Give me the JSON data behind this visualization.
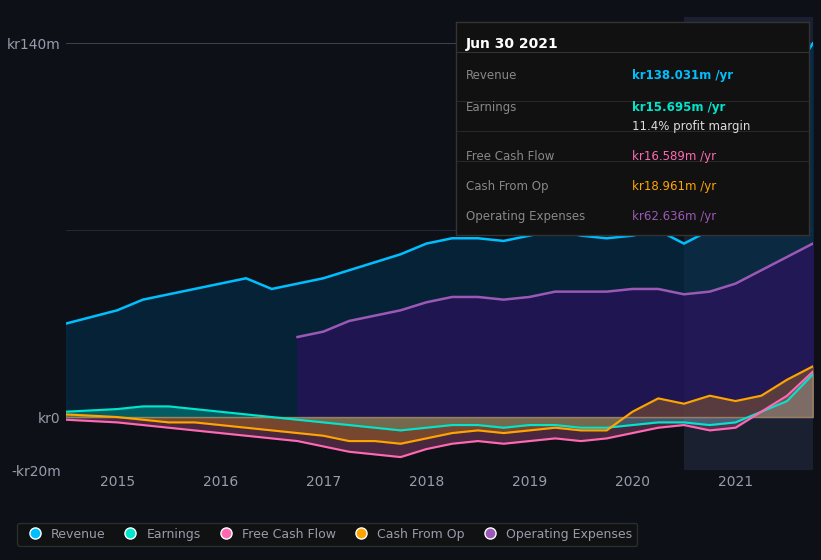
{
  "bg_color": "#0d1117",
  "plot_bg_color": "#0d1117",
  "text_color": "#9a9aaa",
  "title_color": "#ffffff",
  "ylim": [
    -20,
    150
  ],
  "yticks": [
    -20,
    0,
    140
  ],
  "ytick_labels": [
    "-kr20m",
    "kr0",
    "kr140m"
  ],
  "xlim_start": 2014.5,
  "xlim_end": 2021.75,
  "xticks": [
    2015,
    2016,
    2017,
    2018,
    2019,
    2020,
    2021
  ],
  "colors": {
    "revenue": "#00bfff",
    "earnings": "#00e5cc",
    "free_cash_flow": "#ff69b4",
    "cash_from_op": "#ffa500",
    "operating_expenses": "#9b59b6"
  },
  "fill_colors": {
    "revenue": "#003355",
    "operating_expenses": "#2d1060"
  },
  "legend": [
    {
      "label": "Revenue",
      "color": "#00bfff"
    },
    {
      "label": "Earnings",
      "color": "#00e5cc"
    },
    {
      "label": "Free Cash Flow",
      "color": "#ff69b4"
    },
    {
      "label": "Cash From Op",
      "color": "#ffa500"
    },
    {
      "label": "Operating Expenses",
      "color": "#9b59b6"
    }
  ],
  "tooltip_title": "Jun 30 2021",
  "tooltip_bg": "#111111",
  "tooltip_border": "#333333",
  "tooltip_rows": [
    {
      "label": "Revenue",
      "value": "kr138.031m /yr",
      "label_color": "#888888",
      "value_color": "#00bfff"
    },
    {
      "label": "Earnings",
      "value": "kr15.695m /yr",
      "label_color": "#888888",
      "value_color": "#00e5cc"
    },
    {
      "label": "",
      "value": "11.4% profit margin",
      "label_color": "#888888",
      "value_color": "#dddddd"
    },
    {
      "label": "Free Cash Flow",
      "value": "kr16.589m /yr",
      "label_color": "#888888",
      "value_color": "#ff69b4"
    },
    {
      "label": "Cash From Op",
      "value": "kr18.961m /yr",
      "label_color": "#888888",
      "value_color": "#ffa500"
    },
    {
      "label": "Operating Expenses",
      "value": "kr62.636m /yr",
      "label_color": "#888888",
      "value_color": "#9b59b6"
    }
  ],
  "highlight_x_start": 2020.5,
  "highlight_x_end": 2021.75,
  "highlight_color": "#1a2030",
  "revenue": {
    "x": [
      2014.5,
      2015.0,
      2015.25,
      2015.5,
      2015.75,
      2016.0,
      2016.25,
      2016.5,
      2016.75,
      2017.0,
      2017.25,
      2017.5,
      2017.75,
      2018.0,
      2018.25,
      2018.5,
      2018.75,
      2019.0,
      2019.25,
      2019.5,
      2019.75,
      2020.0,
      2020.25,
      2020.5,
      2020.75,
      2021.0,
      2021.25,
      2021.5,
      2021.75
    ],
    "y": [
      35,
      40,
      44,
      46,
      48,
      50,
      52,
      48,
      50,
      52,
      55,
      58,
      61,
      65,
      67,
      67,
      66,
      68,
      70,
      68,
      67,
      68,
      70,
      65,
      70,
      80,
      100,
      125,
      140
    ]
  },
  "operating_expenses": {
    "x": [
      2016.75,
      2017.0,
      2017.25,
      2017.5,
      2017.75,
      2018.0,
      2018.25,
      2018.5,
      2018.75,
      2019.0,
      2019.25,
      2019.5,
      2019.75,
      2020.0,
      2020.25,
      2020.5,
      2020.75,
      2021.0,
      2021.25,
      2021.5,
      2021.75
    ],
    "y": [
      30,
      32,
      36,
      38,
      40,
      43,
      45,
      45,
      44,
      45,
      47,
      47,
      47,
      48,
      48,
      46,
      47,
      50,
      55,
      60,
      65
    ]
  },
  "earnings": {
    "x": [
      2014.5,
      2015.0,
      2015.25,
      2015.5,
      2015.75,
      2016.0,
      2016.25,
      2016.5,
      2016.75,
      2017.0,
      2017.25,
      2017.5,
      2017.75,
      2018.0,
      2018.25,
      2018.5,
      2018.75,
      2019.0,
      2019.25,
      2019.5,
      2019.75,
      2020.0,
      2020.25,
      2020.5,
      2020.75,
      2021.0,
      2021.25,
      2021.5,
      2021.75
    ],
    "y": [
      2,
      3,
      4,
      4,
      3,
      2,
      1,
      0,
      -1,
      -2,
      -3,
      -4,
      -5,
      -4,
      -3,
      -3,
      -4,
      -3,
      -3,
      -4,
      -4,
      -3,
      -2,
      -2,
      -3,
      -2,
      2,
      6,
      16
    ]
  },
  "free_cash_flow": {
    "x": [
      2014.5,
      2015.0,
      2015.25,
      2015.5,
      2015.75,
      2016.0,
      2016.25,
      2016.5,
      2016.75,
      2017.0,
      2017.25,
      2017.5,
      2017.75,
      2018.0,
      2018.25,
      2018.5,
      2018.75,
      2019.0,
      2019.25,
      2019.5,
      2019.75,
      2020.0,
      2020.25,
      2020.5,
      2020.75,
      2021.0,
      2021.25,
      2021.5,
      2021.75
    ],
    "y": [
      -1,
      -2,
      -3,
      -4,
      -5,
      -6,
      -7,
      -8,
      -9,
      -11,
      -13,
      -14,
      -15,
      -12,
      -10,
      -9,
      -10,
      -9,
      -8,
      -9,
      -8,
      -6,
      -4,
      -3,
      -5,
      -4,
      2,
      8,
      17
    ]
  },
  "cash_from_op": {
    "x": [
      2014.5,
      2015.0,
      2015.25,
      2015.5,
      2015.75,
      2016.0,
      2016.25,
      2016.5,
      2016.75,
      2017.0,
      2017.25,
      2017.5,
      2017.75,
      2018.0,
      2018.25,
      2018.5,
      2018.75,
      2019.0,
      2019.25,
      2019.5,
      2019.75,
      2020.0,
      2020.25,
      2020.5,
      2020.75,
      2021.0,
      2021.25,
      2021.5,
      2021.75
    ],
    "y": [
      1,
      0,
      -1,
      -2,
      -2,
      -3,
      -4,
      -5,
      -6,
      -7,
      -9,
      -9,
      -10,
      -8,
      -6,
      -5,
      -6,
      -5,
      -4,
      -5,
      -5,
      2,
      7,
      5,
      8,
      6,
      8,
      14,
      19
    ]
  }
}
